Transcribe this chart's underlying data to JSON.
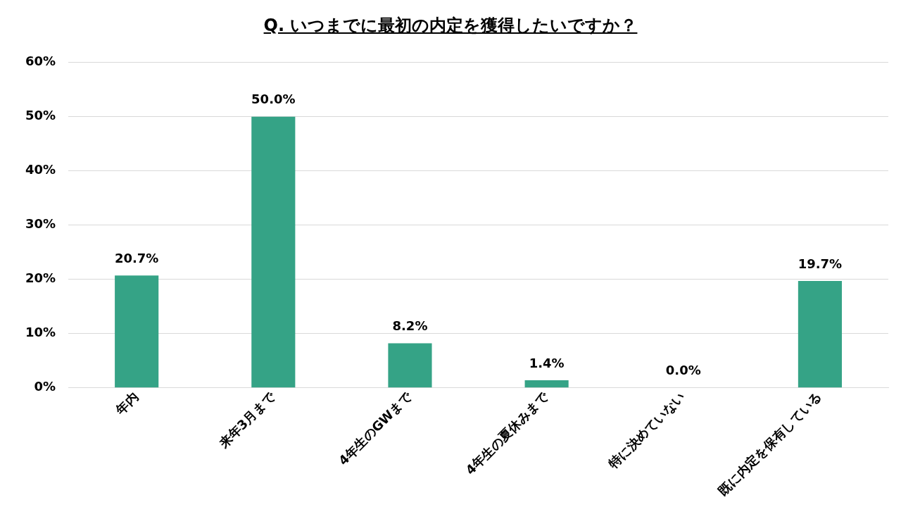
{
  "chart_data": {
    "type": "bar",
    "title": "Q. いつまでに最初の内定を獲得したいですか？",
    "categories": [
      "年内",
      "来年3月まで",
      "4年生のGWまで",
      "4年生の夏休みまで",
      "特に決めていない",
      "既に内定を保有している"
    ],
    "values": [
      20.7,
      50.0,
      8.2,
      1.4,
      0.0,
      19.7
    ],
    "value_labels": [
      "20.7%",
      "50.0%",
      "8.2%",
      "1.4%",
      "0.0%",
      "19.7%"
    ],
    "color": "#35a386",
    "ylim": [
      0,
      60
    ],
    "yticks": [
      {
        "value": 0,
        "label": "0%"
      },
      {
        "value": 10,
        "label": "10%"
      },
      {
        "value": 20,
        "label": "20%"
      },
      {
        "value": 30,
        "label": "30%"
      },
      {
        "value": 40,
        "label": "40%"
      },
      {
        "value": 50,
        "label": "50%"
      },
      {
        "value": 60,
        "label": "60%"
      }
    ],
    "grid": "y",
    "legend": false
  }
}
